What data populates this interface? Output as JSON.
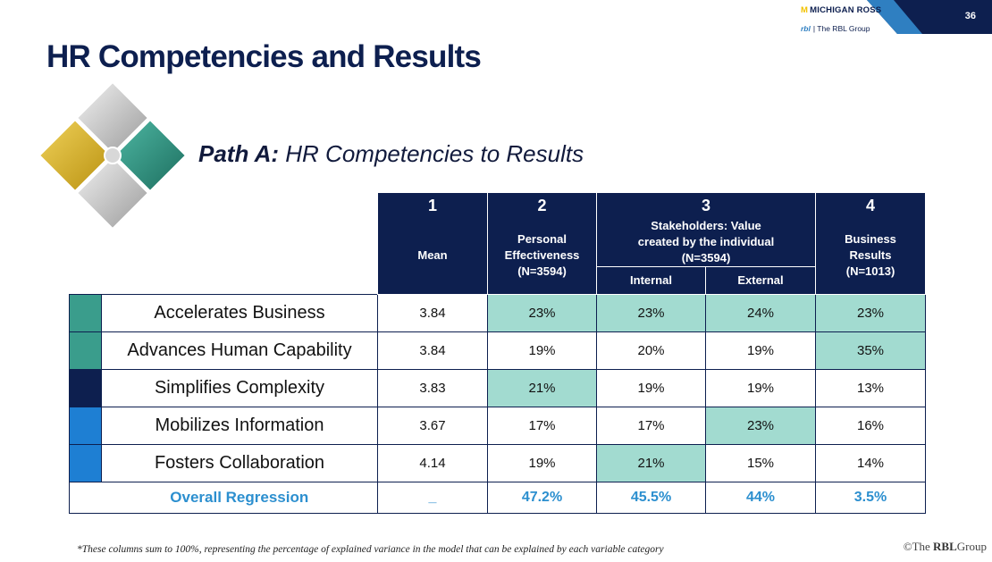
{
  "slide_number": "36",
  "logos": {
    "ross_mark": "M",
    "ross_text": "MICHIGAN ROSS",
    "rbl_mark": "rbl",
    "rbl_text": "| The RBL Group"
  },
  "title": "HR Competencies and Results",
  "subtitle": {
    "bold": "Path A:",
    "rest": " HR Competencies to Results"
  },
  "table": {
    "columns": [
      {
        "num": "1",
        "label": "Mean"
      },
      {
        "num": "2",
        "label_lines": [
          "Personal",
          "Effectiveness",
          "(N=3594)"
        ]
      },
      {
        "num": "3",
        "label_lines": [
          "Stakeholders: Value",
          "created by the individual",
          "(N=3594)"
        ],
        "sub": [
          "Internal",
          "External"
        ]
      },
      {
        "num": "4",
        "label_lines": [
          "Business",
          "Results",
          "(N=1013)"
        ]
      }
    ],
    "rows": [
      {
        "label": "Accelerates Business",
        "color": "#3a9d8c",
        "mean": "3.84",
        "personal": "23%",
        "internal": "23%",
        "external": "24%",
        "business": "23%"
      },
      {
        "label": "Advances Human Capability",
        "color": "#3a9d8c",
        "mean": "3.84",
        "personal": "19%",
        "internal": "20%",
        "external": "19%",
        "business": "35%"
      },
      {
        "label": "Simplifies Complexity",
        "color": "#0d1f4f",
        "mean": "3.83",
        "personal": "21%",
        "internal": "19%",
        "external": "19%",
        "business": "13%"
      },
      {
        "label": "Mobilizes Information",
        "color": "#1e7fd3",
        "mean": "3.67",
        "personal": "17%",
        "internal": "17%",
        "external": "23%",
        "business": "16%"
      },
      {
        "label": "Fosters Collaboration",
        "color": "#1e7fd3",
        "mean": "4.14",
        "personal": "19%",
        "internal": "21%",
        "external": "15%",
        "business": "14%"
      }
    ],
    "total": {
      "label": "Overall Regression",
      "mean": "_",
      "personal": "47.2%",
      "internal": "45.5%",
      "external": "44%",
      "business": "3.5%"
    },
    "highlight_color": "#a2dbd0"
  },
  "footnote": "*These columns sum to 100%, representing the percentage of explained variance in the model that can be explained by each variable category",
  "copyright": {
    "symbol": "©",
    "the": "The ",
    "rbl": "RBL",
    "group": "Group"
  }
}
